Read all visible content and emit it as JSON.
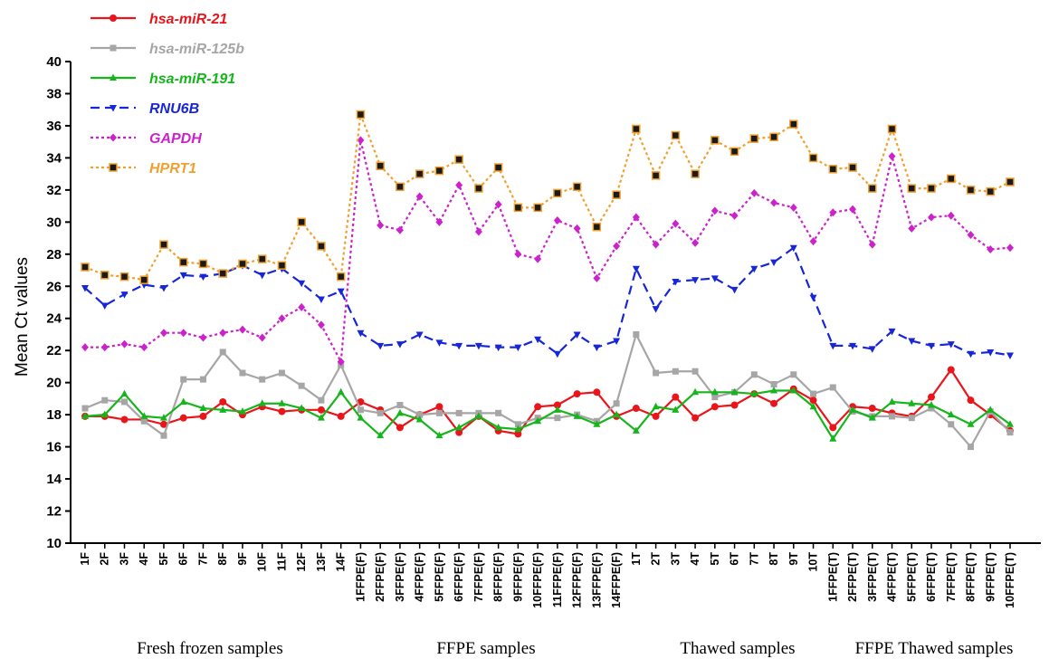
{
  "chart_data": {
    "type": "line",
    "title": "",
    "xlabel": "",
    "ylabel": "Mean Ct values",
    "ylim": [
      10,
      40
    ],
    "yticks": [
      10,
      12,
      14,
      16,
      18,
      20,
      22,
      24,
      26,
      28,
      30,
      32,
      34,
      36,
      38,
      40
    ],
    "grid": false,
    "legend_position": "top-left",
    "categories": [
      "1F",
      "2F",
      "3F",
      "4F",
      "5F",
      "6F",
      "7F",
      "8F",
      "9F",
      "10F",
      "11F",
      "12F",
      "13F",
      "14F",
      "1FFPE(F)",
      "2FFPE(F)",
      "3FFPE(F)",
      "4FFPE(F)",
      "5FFPE(F)",
      "6FFPE(F)",
      "7FFPE(F)",
      "8FFPE(F)",
      "9FFPE(F)",
      "10FFPE(F)",
      "11FFPE(F)",
      "12FFPE(F)",
      "13FFPE(F)",
      "14FFPE(F)",
      "1T",
      "2T",
      "3T",
      "4T",
      "5T",
      "6T",
      "7T",
      "8T",
      "9T",
      "10T",
      "1FFPE(T)",
      "2FFPE(T)",
      "3FFPE(T)",
      "4FFPE(T)",
      "5FFPE(T)",
      "6FFPE(T)",
      "7FFPE(T)",
      "8FFPE(T)",
      "9FFPE(T)",
      "10FFPE(T)"
    ],
    "groups": [
      {
        "label": "Fresh frozen samples"
      },
      {
        "label": "FFPE samples"
      },
      {
        "label": "Thawed  samples"
      },
      {
        "label": "FFPE Thawed samples"
      }
    ],
    "series": [
      {
        "name": "hsa-miR-21",
        "color": "#e8161b",
        "marker": "circle",
        "dash": "solid",
        "values": [
          17.9,
          17.9,
          17.7,
          17.7,
          17.4,
          17.8,
          17.9,
          18.8,
          18.0,
          18.5,
          18.2,
          18.3,
          18.3,
          17.9,
          18.8,
          18.3,
          17.2,
          18.0,
          18.5,
          16.9,
          17.9,
          17.0,
          16.8,
          18.5,
          18.6,
          19.3,
          19.4,
          17.9,
          18.4,
          17.9,
          19.1,
          17.8,
          18.5,
          18.6,
          19.3,
          18.7,
          19.6,
          18.9,
          17.2,
          18.5,
          18.4,
          18.1,
          17.9,
          19.1,
          20.8,
          18.9,
          18.0,
          17.0
        ]
      },
      {
        "name": "hsa-miR-125b",
        "color": "#a6a6a6",
        "marker": "square",
        "dash": "solid",
        "values": [
          18.4,
          18.9,
          18.8,
          17.6,
          16.7,
          20.2,
          20.2,
          21.9,
          20.6,
          20.2,
          20.6,
          19.8,
          18.9,
          21.1,
          18.3,
          18.1,
          18.6,
          18.0,
          18.1,
          18.1,
          18.1,
          18.1,
          17.4,
          17.8,
          17.8,
          18.0,
          17.6,
          18.7,
          23.0,
          20.6,
          20.7,
          20.7,
          19.1,
          19.4,
          20.5,
          19.9,
          20.5,
          19.3,
          19.7,
          18.2,
          17.9,
          17.9,
          17.8,
          18.4,
          17.4,
          16.0,
          18.2,
          16.9
        ]
      },
      {
        "name": "hsa-miR-191",
        "color": "#16b51c",
        "marker": "triangle-up",
        "dash": "solid",
        "values": [
          17.9,
          18.0,
          19.3,
          17.9,
          17.8,
          18.8,
          18.4,
          18.3,
          18.2,
          18.7,
          18.7,
          18.4,
          17.8,
          19.4,
          17.8,
          16.7,
          18.1,
          17.7,
          16.7,
          17.2,
          17.9,
          17.2,
          17.1,
          17.6,
          18.3,
          17.9,
          17.4,
          18.0,
          17.0,
          18.5,
          18.3,
          19.4,
          19.4,
          19.4,
          19.3,
          19.5,
          19.5,
          18.5,
          16.5,
          18.3,
          17.8,
          18.8,
          18.7,
          18.6,
          18.0,
          17.4,
          18.3,
          17.4
        ]
      },
      {
        "name": "RNU6B",
        "color": "#1726d6",
        "marker": "triangle-down",
        "dash": "dashed",
        "values": [
          25.9,
          24.8,
          25.5,
          26.1,
          25.9,
          26.7,
          26.6,
          26.8,
          27.3,
          26.7,
          27.1,
          26.2,
          25.2,
          25.7,
          23.1,
          22.3,
          22.4,
          23.0,
          22.5,
          22.3,
          22.3,
          22.2,
          22.2,
          22.7,
          21.8,
          23.0,
          22.2,
          22.6,
          27.1,
          24.6,
          26.3,
          26.4,
          26.5,
          25.8,
          27.1,
          27.5,
          28.4,
          25.3,
          22.3,
          22.3,
          22.1,
          23.2,
          22.6,
          22.3,
          22.4,
          21.8,
          21.9,
          21.7
        ]
      },
      {
        "name": "GAPDH",
        "color": "#cc22cc",
        "marker": "diamond",
        "dash": "dotted",
        "values": [
          22.2,
          22.2,
          22.4,
          22.2,
          23.1,
          23.1,
          22.8,
          23.1,
          23.3,
          22.8,
          24.0,
          24.7,
          23.6,
          21.3,
          35.1,
          29.8,
          29.5,
          31.6,
          30.0,
          32.3,
          29.4,
          31.1,
          28.0,
          27.7,
          30.1,
          29.6,
          26.5,
          28.5,
          30.3,
          28.6,
          29.9,
          28.7,
          30.7,
          30.4,
          31.8,
          31.2,
          30.9,
          28.8,
          30.6,
          30.8,
          28.6,
          34.1,
          29.6,
          30.3,
          30.4,
          29.2,
          28.3,
          28.4
        ]
      },
      {
        "name": "HPRT1",
        "color": "#f0a030",
        "marker": "square-black",
        "dash": "dotted",
        "values": [
          27.2,
          26.7,
          26.6,
          26.4,
          28.6,
          27.5,
          27.4,
          26.8,
          27.4,
          27.7,
          27.3,
          30.0,
          28.5,
          26.6,
          36.7,
          33.5,
          32.2,
          33.0,
          33.2,
          33.9,
          32.1,
          33.4,
          30.9,
          30.9,
          31.8,
          32.2,
          29.7,
          31.7,
          35.8,
          32.9,
          35.4,
          33.0,
          35.1,
          34.4,
          35.2,
          35.3,
          36.1,
          34.0,
          33.3,
          33.4,
          32.1,
          35.8,
          32.1,
          32.1,
          32.7,
          32.0,
          31.9,
          32.5
        ]
      }
    ]
  }
}
